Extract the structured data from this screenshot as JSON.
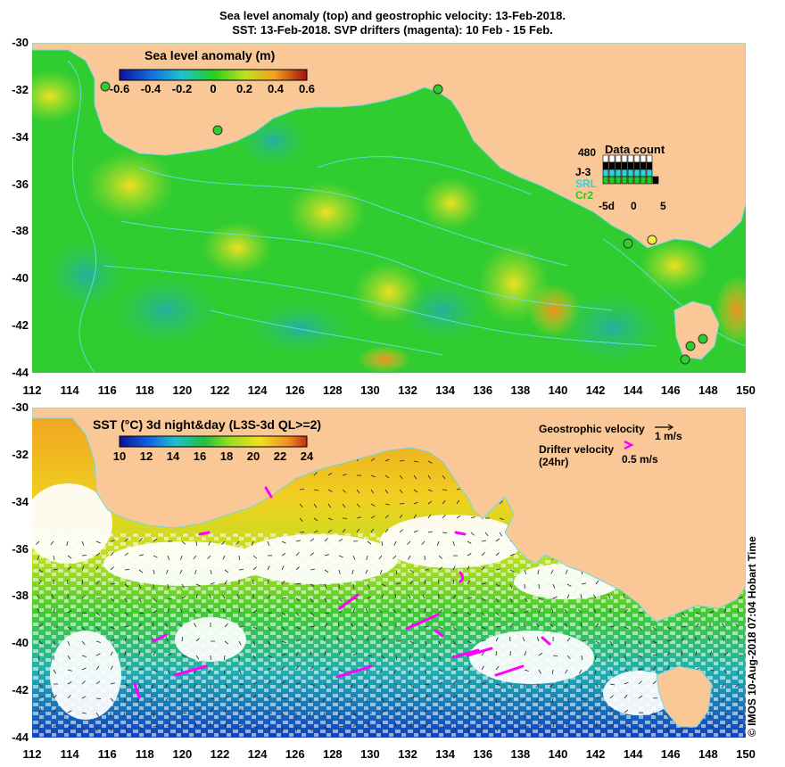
{
  "title_line1": "Sea level anomaly (top) and geostrophic velocity: 13-Feb-2018.",
  "title_line2": "SST: 13-Feb-2018. SVP drifters (magenta): 10 Feb - 15 Feb.",
  "y_ticks": [
    "-30",
    "-32",
    "-34",
    "-36",
    "-38",
    "-40",
    "-42",
    "-44"
  ],
  "x_ticks": [
    "112",
    "114",
    "116",
    "118",
    "120",
    "122",
    "124",
    "126",
    "128",
    "130",
    "132",
    "134",
    "136",
    "138",
    "140",
    "142",
    "144",
    "146",
    "148",
    "150"
  ],
  "top_panel": {
    "colorbar_title": "Sea level anomaly (m)",
    "colorbar_ticks": [
      "-0.6",
      "-0.4",
      "-0.2",
      "0",
      "0.2",
      "0.4",
      "0.6"
    ],
    "data_count": {
      "title": "Data count",
      "max_label": "480",
      "series": [
        {
          "name": "J-3",
          "color": "#000000"
        },
        {
          "name": "SRL",
          "color": "#30d0e0"
        },
        {
          "name": "Cr2",
          "color": "#22cc22"
        }
      ],
      "axis_ticks": [
        "-5d",
        "0",
        "5"
      ]
    }
  },
  "bottom_panel": {
    "colorbar_title": "SST (°C) 3d night&day (L3S-3d QL>=2)",
    "colorbar_ticks": [
      "10",
      "12",
      "14",
      "16",
      "18",
      "20",
      "22",
      "24"
    ],
    "geo_velocity_label": "Geostrophic velocity",
    "geo_velocity_scale": "1 m/s",
    "drifter_label": "Drifter velocity",
    "drifter_sub": "(24hr)",
    "drifter_scale": "0.5 m/s"
  },
  "credit": "© IMOS 10-Aug-2018 07:04 Hobart Time",
  "colors": {
    "land": "#fac896",
    "drifter": "#ff00ff"
  }
}
